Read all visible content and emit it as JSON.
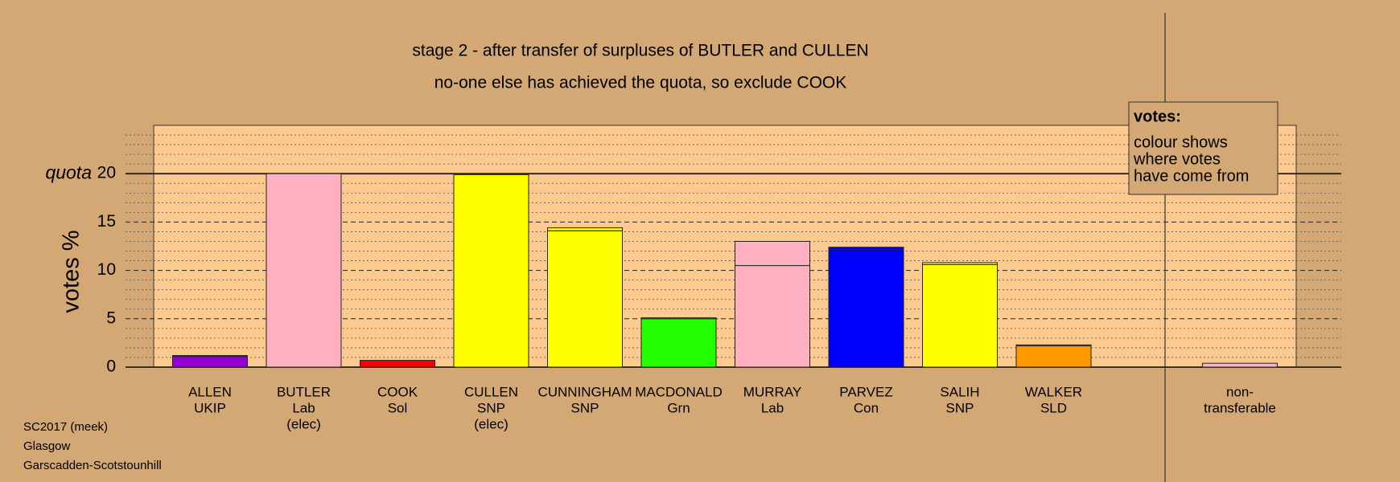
{
  "chart_data": {
    "type": "bar",
    "title": "stage 2 - after transfer of surpluses of BUTLER and CULLEN",
    "subtitle": "no-one else has achieved the quota, so exclude COOK",
    "y_label": "votes %",
    "categories": [
      [
        "ALLEN",
        "UKIP"
      ],
      [
        "BUTLER",
        "Lab",
        "(elec)"
      ],
      [
        "COOK",
        "Sol"
      ],
      [
        "CULLEN",
        "SNP",
        "(elec)"
      ],
      [
        "CUNNINGHAM",
        "SNP"
      ],
      [
        "MACDONALD",
        "Grn"
      ],
      [
        "MURRAY",
        "Lab"
      ],
      [
        "PARVEZ",
        "Con"
      ],
      [
        "SALIH",
        "SNP"
      ],
      [
        "WALKER",
        "SLD"
      ]
    ],
    "series": [
      {
        "colors": [
          "#9400d3",
          "#ffb0c0",
          "#ff0000",
          "#ffff00",
          "#ffff00",
          "#22ff00",
          "#ffb0c0",
          "#0000ff",
          "#ffff00",
          "#ff9900"
        ],
        "values": [
          1.1,
          20.0,
          0.7,
          19.9,
          14.1,
          5.0,
          10.5,
          12.2,
          10.6,
          2.2
        ]
      },
      {
        "colors": [
          "#9400d3",
          "#ffb0c0",
          "#ff0000",
          "#ffff00",
          "#ffff00",
          "#22ff00",
          "#ffb0c0",
          "#0000ff",
          "#ffff00",
          "#ff9900"
        ],
        "values": [
          0.1,
          0,
          0,
          0,
          0.3,
          0.1,
          2.5,
          0.2,
          0.2,
          0.1
        ]
      }
    ],
    "nontransferable": {
      "label": [
        "non-",
        "transferable"
      ],
      "value": 0.4,
      "color": "#ffb0c0"
    },
    "ylim": [
      0,
      25
    ],
    "yticks": [
      0,
      5,
      10,
      15,
      20
    ],
    "minor_yticks": [
      1,
      2,
      3,
      4,
      6,
      7,
      8,
      9,
      11,
      12,
      13,
      14,
      16,
      17,
      18,
      19,
      21,
      22,
      23,
      24
    ],
    "quota": {
      "value": 20,
      "label": "quota"
    },
    "legend": {
      "title": "votes:",
      "lines": [
        "colour shows",
        "where votes",
        "have come from"
      ]
    },
    "footer": [
      "SC2017 (meek)",
      "Glasgow",
      "Garscadden-Scotstounhill"
    ]
  }
}
